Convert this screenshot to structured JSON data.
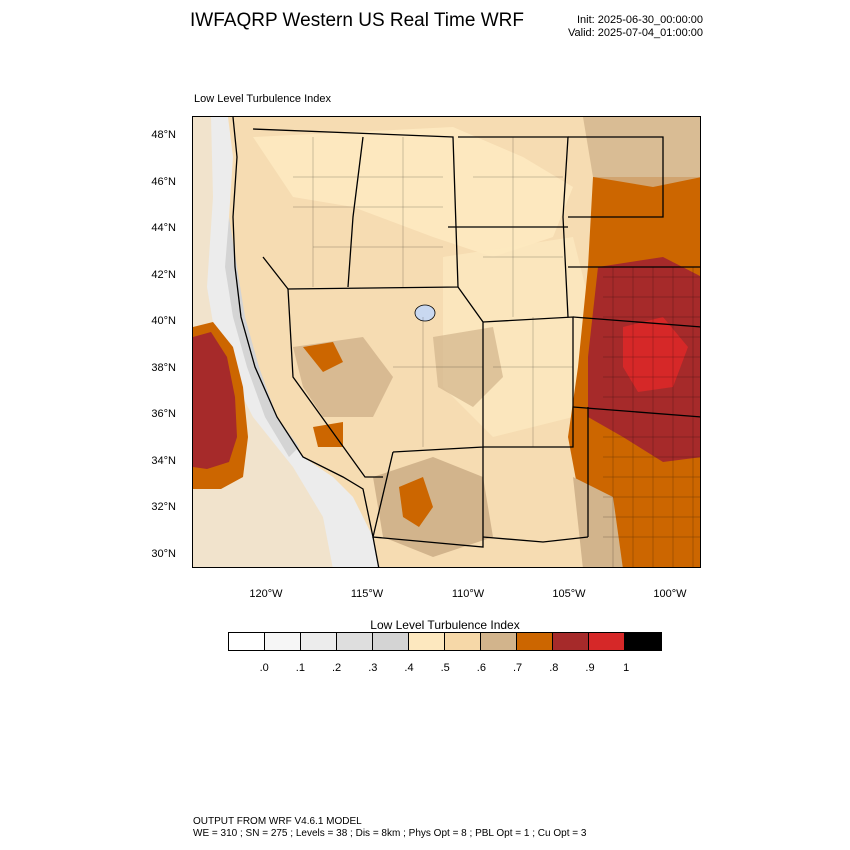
{
  "header": {
    "title": "IWFAQRP Western US Real Time WRF",
    "init": "Init: 2025-06-30_00:00:00",
    "valid": "Valid: 2025-07-04_01:00:00"
  },
  "plot": {
    "subtitle": "Low Level Turbulence Index",
    "lat_labels": [
      "48°N",
      "46°N",
      "44°N",
      "42°N",
      "40°N",
      "38°N",
      "36°N",
      "34°N",
      "32°N",
      "30°N"
    ],
    "lon_labels": [
      "120°W",
      "115°W",
      "110°W",
      "105°W",
      "100°W"
    ]
  },
  "colorbar": {
    "title": "Low Level Turbulence Index",
    "colors": [
      "#ffffff",
      "#f6f6f6",
      "#ececec",
      "#dedede",
      "#d4d4d4",
      "#fde8bf",
      "#f6d8a8",
      "#d2b48c",
      "#cc6600",
      "#a62a2a",
      "#d62828",
      "#000000"
    ],
    "labels": [
      ".0",
      ".1",
      ".2",
      ".3",
      ".4",
      ".5",
      ".6",
      ".7",
      ".8",
      ".9",
      "1"
    ]
  },
  "footer": {
    "line1": "OUTPUT FROM WRF V4.6.1 MODEL",
    "line2": "WE = 310 ; SN = 275 ; Levels = 38 ; Dis = 8km ; Phys Opt = 8 ; PBL Opt = 1 ; Cu Opt = 3"
  },
  "map_colors": {
    "land": "#f6dcb2",
    "light": "#fde8bf",
    "tan": "#d2b48c",
    "orange": "#cc6600",
    "darkred": "#a62a2a",
    "red": "#d62828",
    "ocean": "#ececec",
    "ocean_light": "#f6f6f6",
    "grey": "#d4d4d4",
    "water": "#c9d8f0"
  }
}
